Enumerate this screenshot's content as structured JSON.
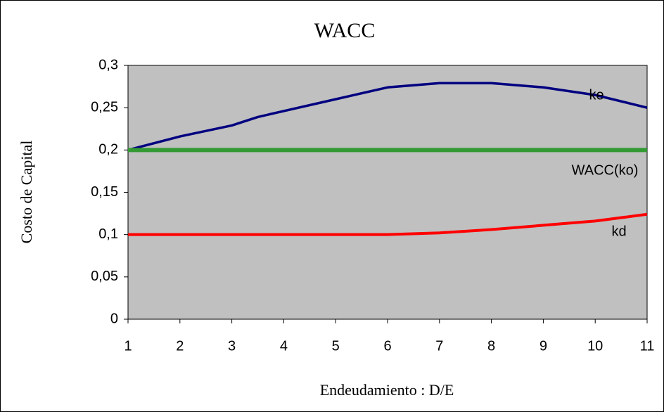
{
  "chart_data": {
    "type": "line",
    "title": "WACC",
    "xlabel": "Endeudamiento : D/E",
    "ylabel": "Costo de Capital",
    "x": [
      1,
      2,
      3,
      3.5,
      4,
      5,
      6,
      7,
      8,
      9,
      10,
      11
    ],
    "series": [
      {
        "name": "ke",
        "color": "#000080",
        "values": [
          0.2,
          0.216,
          0.229,
          0.239,
          0.246,
          0.26,
          0.274,
          0.279,
          0.279,
          0.274,
          0.265,
          0.25
        ]
      },
      {
        "name": "WACC(ko)",
        "color": "#339933",
        "values": [
          0.2,
          0.2,
          0.2,
          0.2,
          0.2,
          0.2,
          0.2,
          0.2,
          0.2,
          0.2,
          0.2,
          0.2
        ]
      },
      {
        "name": "kd",
        "color": "#ff0000",
        "values": [
          0.1,
          0.1,
          0.1,
          0.1,
          0.1,
          0.1,
          0.1,
          0.102,
          0.106,
          0.111,
          0.116,
          0.124
        ]
      }
    ],
    "xlim": [
      1,
      11
    ],
    "xticks": [
      1,
      2,
      3,
      4,
      5,
      6,
      7,
      8,
      9,
      10,
      11
    ],
    "ylim": [
      0,
      0.3
    ],
    "yticks": [
      0,
      {
        "value": 0.05,
        "label": "0,05"
      },
      {
        "value": 0.1,
        "label": "0,1"
      },
      {
        "value": 0.15,
        "label": "0,15"
      },
      {
        "value": 0.2,
        "label": "0,2"
      },
      {
        "value": 0.25,
        "label": "0,25"
      },
      {
        "value": 0.3,
        "label": "0,3"
      }
    ],
    "grid": false,
    "plot_background": "#c0c0c0"
  }
}
